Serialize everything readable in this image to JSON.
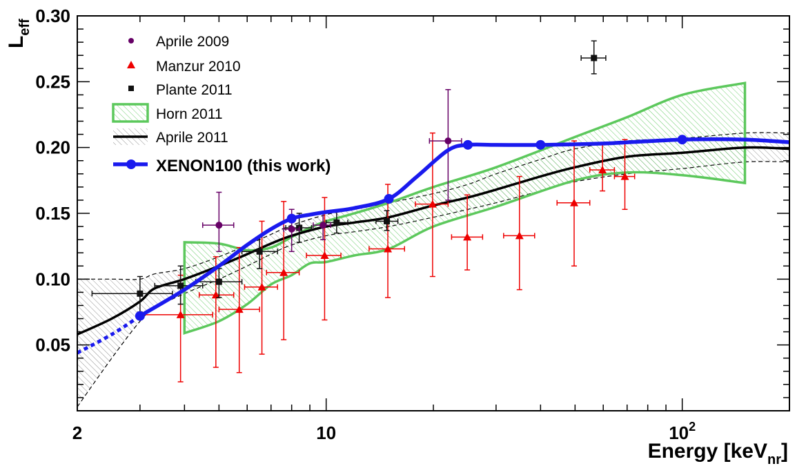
{
  "chart_data": {
    "type": "scatter",
    "title": "",
    "ylabel": "L",
    "ylabel_sub": "eff",
    "xlabel": "Energy [keV",
    "xlabel_sub": "nr",
    "xlabel_close": "]",
    "xscale": "log",
    "xlim": [
      2,
      200
    ],
    "ylim": [
      0.0,
      0.3
    ],
    "x_ticks": [
      {
        "value": 2,
        "label": "2"
      },
      {
        "value": 10,
        "label": "10"
      },
      {
        "value": 100,
        "label": "10",
        "sup": "2"
      }
    ],
    "y_ticks": [
      {
        "value": 0.05,
        "label": "0.05"
      },
      {
        "value": 0.1,
        "label": "0.10"
      },
      {
        "value": 0.15,
        "label": "0.15"
      },
      {
        "value": 0.2,
        "label": "0.20"
      },
      {
        "value": 0.25,
        "label": "0.25"
      },
      {
        "value": 0.3,
        "label": "0.30"
      }
    ],
    "legend": [
      {
        "key": "aprile2009",
        "label": "Aprile 2009"
      },
      {
        "key": "manzur2010",
        "label": "Manzur 2010"
      },
      {
        "key": "plante2011",
        "label": "Plante 2011"
      },
      {
        "key": "horn2011",
        "label": "Horn 2011"
      },
      {
        "key": "aprile2011",
        "label": "Aprile 2011"
      },
      {
        "key": "xenon100",
        "label": "XENON100 (this work)"
      }
    ],
    "colors": {
      "aprile2009": "#660066",
      "manzur2010": "#ee0000",
      "plante2011": "#111111",
      "horn2011": "#5cc85c",
      "aprile2011": "#000000",
      "xenon100": "#1a1aee"
    },
    "series": [
      {
        "name": "Aprile 2009",
        "marker": "circle",
        "points": [
          {
            "x": 5.0,
            "y": 0.141,
            "xerr": [
              4.5,
              5.5
            ],
            "yerr": [
              0.121,
              0.166
            ]
          },
          {
            "x": 8.0,
            "y": 0.138,
            "xerr": [
              7.6,
              8.4
            ],
            "yerr": [
              0.121,
              0.153
            ]
          },
          {
            "x": 9.8,
            "y": 0.141,
            "xerr": [
              9.2,
              10.3
            ],
            "yerr": [
              0.13,
              0.151
            ]
          },
          {
            "x": 22.0,
            "y": 0.205,
            "xerr": [
              19.5,
              24.0
            ],
            "yerr": [
              0.16,
              0.244
            ]
          }
        ]
      },
      {
        "name": "Manzur 2010",
        "marker": "triangle",
        "points": [
          {
            "x": 3.9,
            "y": 0.073,
            "xerr": [
              3.0,
              4.8
            ],
            "yerr": [
              0.022,
              0.103
            ]
          },
          {
            "x": 4.9,
            "y": 0.088,
            "xerr": [
              4.4,
              5.5
            ],
            "yerr": [
              0.033,
              0.117
            ]
          },
          {
            "x": 5.7,
            "y": 0.077,
            "xerr": [
              5.0,
              6.5
            ],
            "yerr": [
              0.029,
              0.124
            ]
          },
          {
            "x": 6.6,
            "y": 0.094,
            "xerr": [
              5.9,
              7.3
            ],
            "yerr": [
              0.043,
              0.144
            ]
          },
          {
            "x": 7.6,
            "y": 0.105,
            "xerr": [
              6.8,
              8.4
            ],
            "yerr": [
              0.054,
              0.159
            ]
          },
          {
            "x": 9.9,
            "y": 0.118,
            "xerr": [
              8.8,
              11.0
            ],
            "yerr": [
              0.069,
              0.162
            ]
          },
          {
            "x": 14.9,
            "y": 0.123,
            "xerr": [
              13.2,
              16.6
            ],
            "yerr": [
              0.086,
              0.172
            ]
          },
          {
            "x": 19.9,
            "y": 0.157,
            "xerr": [
              17.8,
              22.0
            ],
            "yerr": [
              0.102,
              0.211
            ]
          },
          {
            "x": 24.9,
            "y": 0.132,
            "xerr": [
              22.5,
              27.5
            ],
            "yerr": [
              0.107,
              0.164
            ]
          },
          {
            "x": 34.9,
            "y": 0.133,
            "xerr": [
              31.5,
              38.5
            ],
            "yerr": [
              0.092,
              0.178
            ]
          },
          {
            "x": 49.7,
            "y": 0.158,
            "xerr": [
              44.5,
              55.0
            ],
            "yerr": [
              0.11,
              0.205
            ]
          },
          {
            "x": 59.7,
            "y": 0.183,
            "xerr": [
              55.0,
              64.5
            ],
            "yerr": [
              0.167,
              0.202
            ]
          },
          {
            "x": 69.0,
            "y": 0.178,
            "xerr": [
              64.5,
              73.5
            ],
            "yerr": [
              0.153,
              0.206
            ]
          }
        ]
      },
      {
        "name": "Plante 2011",
        "marker": "square",
        "points": [
          {
            "x": 3.0,
            "y": 0.089,
            "xerr": [
              2.2,
              3.7
            ],
            "yerr": [
              0.075,
              0.102
            ]
          },
          {
            "x": 3.9,
            "y": 0.095,
            "xerr": [
              3.3,
              4.5
            ],
            "yerr": [
              0.081,
              0.11
            ]
          },
          {
            "x": 5.0,
            "y": 0.098,
            "xerr": [
              4.3,
              5.8
            ],
            "yerr": [
              0.086,
              0.108
            ]
          },
          {
            "x": 6.5,
            "y": 0.121,
            "xerr": [
              5.8,
              7.3
            ],
            "yerr": [
              0.108,
              0.132
            ]
          },
          {
            "x": 8.4,
            "y": 0.139,
            "xerr": [
              7.7,
              9.1
            ],
            "yerr": [
              0.128,
              0.15
            ]
          },
          {
            "x": 10.7,
            "y": 0.143,
            "xerr": [
              10.0,
              11.5
            ],
            "yerr": [
              0.135,
              0.152
            ]
          },
          {
            "x": 14.8,
            "y": 0.144,
            "xerr": [
              13.8,
              15.9
            ],
            "yerr": [
              0.137,
              0.152
            ]
          },
          {
            "x": 56.5,
            "y": 0.268,
            "xerr": [
              52.0,
              61.0
            ],
            "yerr": [
              0.256,
              0.281
            ]
          }
        ]
      },
      {
        "name": "Aprile 2011",
        "type": "line",
        "x": [
          2.0,
          2.5,
          3.0,
          3.3,
          4.0,
          5.0,
          6.0,
          7.0,
          8.0,
          10.0,
          12.0,
          15.0,
          20.0,
          25.0,
          30.0,
          40.0,
          50.0,
          70.0,
          100.0,
          150.0,
          200.0
        ],
        "values": [
          0.058,
          0.07,
          0.083,
          0.093,
          0.1,
          0.11,
          0.119,
          0.127,
          0.133,
          0.14,
          0.143,
          0.147,
          0.156,
          0.162,
          0.168,
          0.178,
          0.185,
          0.193,
          0.196,
          0.2,
          0.199
        ],
        "band_upper": [
          0.1,
          0.1,
          0.1,
          0.104,
          0.108,
          0.117,
          0.126,
          0.134,
          0.141,
          0.149,
          0.153,
          0.158,
          0.165,
          0.172,
          0.18,
          0.191,
          0.199,
          0.205,
          0.207,
          0.211,
          0.211
        ],
        "band_lower": [
          0.003,
          0.04,
          0.068,
          0.078,
          0.089,
          0.1,
          0.11,
          0.119,
          0.126,
          0.133,
          0.136,
          0.14,
          0.147,
          0.153,
          0.158,
          0.167,
          0.174,
          0.18,
          0.184,
          0.189,
          0.189
        ]
      },
      {
        "name": "Horn 2011",
        "type": "band",
        "x": [
          4.0,
          5.0,
          6.0,
          7.0,
          8.0,
          9.0,
          10.0,
          12.0,
          15.0,
          20.0,
          30.0,
          50.0,
          70.0,
          100.0,
          150.0
        ],
        "band_upper": [
          0.128,
          0.127,
          0.122,
          0.124,
          0.132,
          0.139,
          0.144,
          0.15,
          0.158,
          0.17,
          0.185,
          0.208,
          0.223,
          0.24,
          0.249
        ],
        "band_lower": [
          0.059,
          0.068,
          0.081,
          0.096,
          0.103,
          0.112,
          0.113,
          0.118,
          0.123,
          0.14,
          0.155,
          0.175,
          0.181,
          0.179,
          0.173
        ]
      },
      {
        "name": "XENON100 (this work)",
        "type": "line",
        "x": [
          3.0,
          4.0,
          5.0,
          6.0,
          7.0,
          8.0,
          9.0,
          10.0,
          12.0,
          15.0,
          18.0,
          22.0,
          25.0,
          30.0,
          40.0,
          60.0,
          100.0,
          150.0,
          200.0
        ],
        "values": [
          0.072,
          0.092,
          0.11,
          0.126,
          0.138,
          0.146,
          0.149,
          0.151,
          0.154,
          0.161,
          0.178,
          0.198,
          0.202,
          0.202,
          0.202,
          0.203,
          0.206,
          0.206,
          0.204
        ],
        "extrapolation_x": [
          2.0,
          2.5,
          3.0
        ],
        "extrapolation_values": [
          0.044,
          0.058,
          0.072
        ],
        "markers_x": [
          3.0,
          8.0,
          15.0,
          25.0,
          40.0,
          100.0
        ],
        "markers_values": [
          0.072,
          0.146,
          0.161,
          0.202,
          0.202,
          0.206
        ]
      }
    ]
  }
}
